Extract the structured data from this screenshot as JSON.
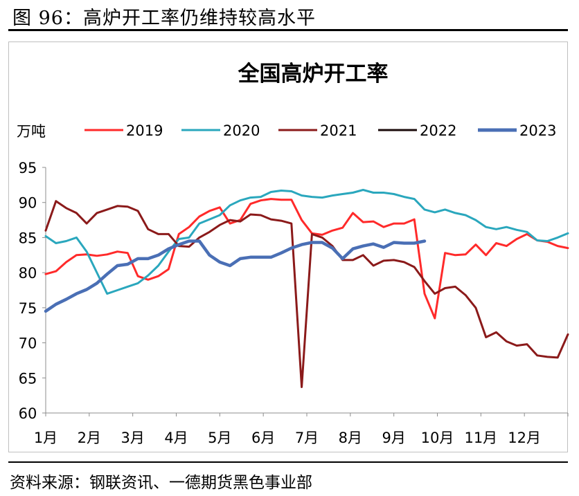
{
  "figure": {
    "title": "图 96：高炉开工率仍维持较高水平",
    "source": "资料来源：钢联资讯、一德期货黑色事业部"
  },
  "chart_data": {
    "type": "line",
    "title": "全国高炉开工率",
    "unit_label": "万吨",
    "xlabel": "",
    "ylabel": "",
    "ylim": [
      60,
      95
    ],
    "y_ticks": [
      60,
      65,
      70,
      75,
      80,
      85,
      90,
      95
    ],
    "x_tick_labels": [
      "1月",
      "2月",
      "3月",
      "4月",
      "5月",
      "6月",
      "7月",
      "8月",
      "9月",
      "10月",
      "11月",
      "12月"
    ],
    "grid": false,
    "legend": "top",
    "x_unit": "week index (1-52); month ticks at weeks 1,5.33,9.67,14,18.33,22.67,27,31.33,35.67,40,44.33,48.67",
    "series": [
      {
        "name": "2019",
        "color": "#ff2a2a",
        "x": [
          1,
          2,
          3,
          4,
          5,
          6,
          7,
          8,
          9,
          10,
          11,
          12,
          13,
          14,
          15,
          16,
          17,
          18,
          19,
          20,
          21,
          22,
          23,
          24,
          25,
          26,
          27,
          28,
          29,
          30,
          31,
          32,
          33,
          34,
          35,
          36,
          37,
          38,
          39,
          40,
          41,
          42,
          43,
          44,
          45,
          46,
          47,
          48,
          49,
          50,
          51,
          52
        ],
        "y": [
          79.8,
          80.2,
          81.5,
          82.5,
          82.6,
          82.4,
          82.6,
          83.0,
          82.8,
          79.5,
          79.0,
          79.5,
          80.5,
          85.5,
          86.5,
          88.0,
          88.8,
          89.3,
          87.0,
          87.5,
          89.8,
          90.3,
          90.5,
          90.4,
          90.4,
          87.5,
          85.6,
          85.4,
          86.0,
          86.4,
          88.5,
          87.2,
          87.3,
          86.5,
          87.0,
          87.0,
          87.6,
          77.0,
          73.5,
          82.8,
          82.5,
          82.6,
          84.0,
          82.5,
          84.2,
          83.8,
          84.8,
          85.5,
          84.6,
          84.4,
          83.8,
          83.5
        ]
      },
      {
        "name": "2020",
        "color": "#2aa7bd",
        "x": [
          1,
          2,
          3,
          4,
          5,
          6,
          7,
          8,
          9,
          10,
          11,
          12,
          13,
          14,
          15,
          16,
          17,
          18,
          19,
          20,
          21,
          22,
          23,
          24,
          25,
          26,
          27,
          28,
          29,
          30,
          31,
          32,
          33,
          34,
          35,
          36,
          37,
          38,
          39,
          40,
          41,
          42,
          43,
          44,
          45,
          46,
          47,
          48,
          49,
          50,
          51,
          52
        ],
        "y": [
          85.2,
          84.2,
          84.5,
          85.0,
          83.0,
          80.0,
          77.0,
          77.5,
          78.0,
          78.5,
          79.6,
          81.0,
          83.0,
          84.8,
          85.0,
          87.0,
          87.6,
          88.2,
          89.6,
          90.3,
          90.7,
          90.8,
          91.5,
          91.7,
          91.6,
          91.0,
          90.8,
          90.7,
          91.0,
          91.2,
          91.4,
          91.8,
          91.4,
          91.4,
          91.2,
          90.8,
          90.5,
          89.0,
          88.6,
          89.0,
          88.5,
          88.2,
          87.5,
          86.5,
          86.2,
          86.5,
          86.1,
          85.8,
          84.6,
          84.5,
          85.0,
          85.6
        ]
      },
      {
        "name": "2021",
        "color": "#8b1a1a",
        "x": [
          1,
          2,
          3,
          4,
          5,
          6,
          7,
          8,
          9,
          10,
          11,
          12,
          13,
          14,
          15,
          16,
          17,
          18,
          19,
          20,
          21,
          22,
          23,
          24,
          25,
          26,
          27,
          28,
          29,
          30,
          31,
          32,
          33,
          34,
          35,
          36,
          37,
          38,
          39,
          40,
          41,
          42,
          43,
          44,
          45,
          46,
          47,
          48,
          49,
          50,
          51,
          52
        ],
        "y": [
          86.0,
          90.2,
          89.2,
          88.5,
          87.0,
          88.5,
          89.0,
          89.5,
          89.4,
          88.8,
          86.2,
          85.5,
          85.5,
          83.8,
          83.7,
          85.0,
          85.8,
          86.8,
          87.5,
          87.3,
          88.3,
          88.2,
          87.6,
          87.4,
          87.0,
          63.7,
          85.5,
          85.0,
          83.8,
          81.8,
          81.8,
          82.5,
          81.0,
          81.7,
          81.8,
          81.5,
          80.8,
          78.8,
          77.0,
          77.8,
          78.0,
          76.8,
          75.0,
          70.8,
          71.5,
          70.2,
          69.6,
          69.8,
          68.2,
          68.0,
          67.9,
          71.2
        ]
      },
      {
        "name": "2022",
        "color": "#1a0a0a",
        "x": [],
        "y": []
      },
      {
        "name": "2023",
        "color": "#4a6fb5",
        "x": [
          1,
          2,
          3,
          4,
          5,
          6,
          7,
          8,
          9,
          10,
          11,
          12,
          13,
          14,
          15,
          16,
          17,
          18,
          19,
          20,
          21,
          22,
          23,
          24,
          25,
          26,
          27,
          28,
          29,
          30,
          31,
          32,
          33,
          34,
          35,
          36,
          37,
          38
        ],
        "y": [
          74.5,
          75.5,
          76.2,
          77.0,
          77.6,
          78.5,
          79.8,
          81.0,
          81.2,
          82.0,
          82.0,
          82.5,
          83.4,
          84.0,
          84.5,
          84.5,
          82.5,
          81.5,
          81.0,
          82.0,
          82.2,
          82.2,
          82.2,
          82.8,
          83.5,
          84.0,
          84.3,
          84.3,
          83.5,
          82.0,
          83.4,
          83.8,
          84.1,
          83.6,
          84.3,
          84.2,
          84.2,
          84.5
        ]
      }
    ]
  }
}
